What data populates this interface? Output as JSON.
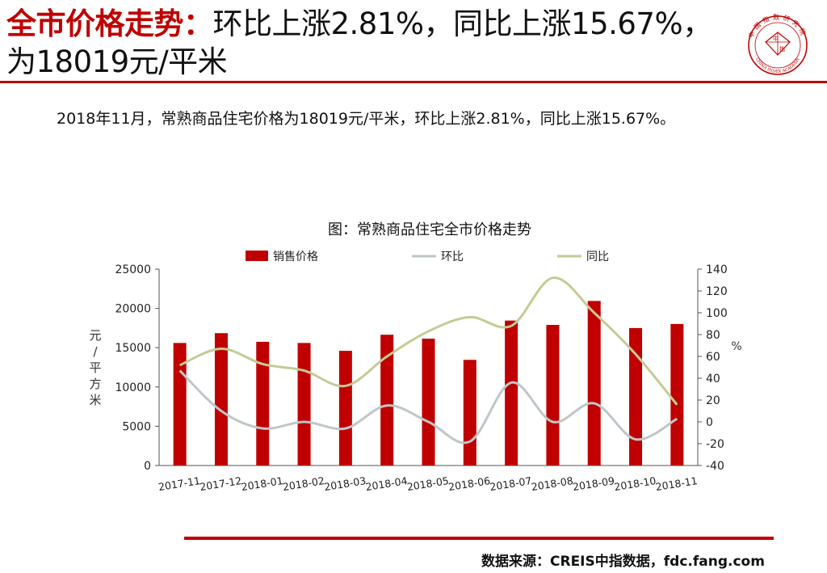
{
  "header": {
    "title_highlight": "全市价格走势：",
    "title_rest": "环比上涨2.81%，同比上涨15.67%，为18019元/平米",
    "logo_ring_text": "中国指数研究院",
    "logo_bottom_text": "CHINA INDEX ACADEMY",
    "logo_center_a": "中",
    "logo_center_b": "指"
  },
  "summary": "2018年11月，常熟商品住宅价格为18019元/平米，环比上涨2.81%，同比上涨15.67%。",
  "footer": {
    "source": "数据来源：CREIS中指数据，fdc.fang.com"
  },
  "colors": {
    "accent": "#c00000",
    "bar": "#c00000",
    "mom_line": "#bfc6c9",
    "yoy_line": "#c6ca95"
  },
  "chart_data": {
    "type": "bar",
    "title": "图：常熟商品住宅全市价格走势",
    "categories": [
      "2017-11",
      "2017-12",
      "2018-01",
      "2018-02",
      "2018-03",
      "2018-04",
      "2018-05",
      "2018-06",
      "2018-07",
      "2018-08",
      "2018-09",
      "2018-10",
      "2018-11"
    ],
    "series": [
      {
        "name": "销售价格",
        "type": "bar",
        "axis": "left",
        "values": [
          15600,
          16850,
          15750,
          15600,
          14600,
          16650,
          16150,
          13450,
          18450,
          17900,
          20950,
          17500,
          18019
        ]
      },
      {
        "name": "环比",
        "type": "line",
        "axis": "right",
        "values": [
          47,
          10,
          -6,
          0,
          -6,
          15,
          0,
          -18,
          36,
          0,
          17,
          -16,
          2.81
        ]
      },
      {
        "name": "同比",
        "type": "line",
        "axis": "right",
        "values": [
          52,
          67,
          53,
          47,
          33,
          60,
          83,
          96,
          88,
          132,
          100,
          62,
          15.67
        ]
      }
    ],
    "ylabel_left": "元/平方米",
    "ylabel_right": "%",
    "ylim_left": [
      0,
      25000
    ],
    "yticks_left": [
      0,
      5000,
      10000,
      15000,
      20000,
      25000
    ],
    "ylim_right": [
      -40,
      140
    ],
    "yticks_right": [
      -40,
      -20,
      0,
      20,
      40,
      60,
      80,
      100,
      120,
      140
    ],
    "legend_position": "top",
    "grid": false
  }
}
